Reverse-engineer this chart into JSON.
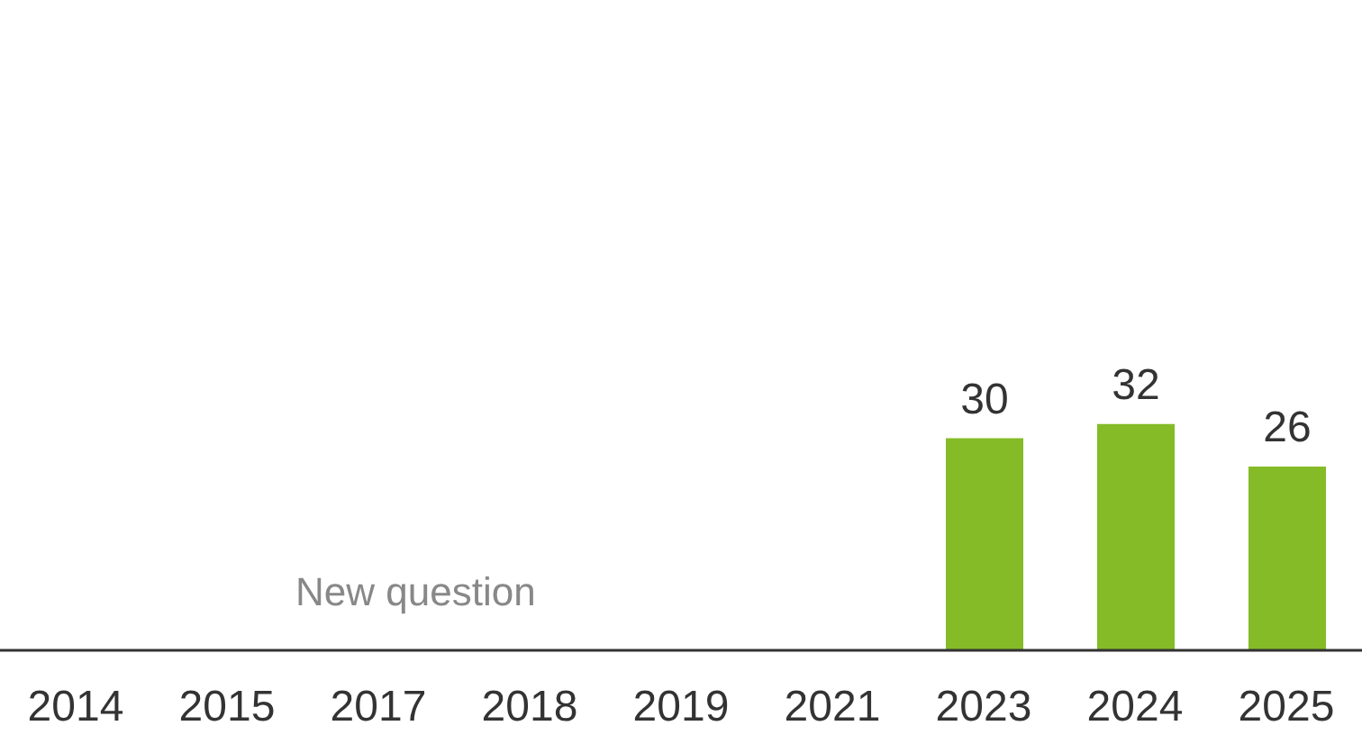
{
  "chart_data": {
    "type": "bar",
    "categories": [
      "2014",
      "2015",
      "2017",
      "2018",
      "2019",
      "2021",
      "2023",
      "2024",
      "2025"
    ],
    "values": [
      null,
      null,
      null,
      null,
      null,
      null,
      30,
      32,
      26
    ],
    "color": "#84bb27",
    "data_labels": true,
    "ylim": [
      0,
      92
    ],
    "tick_labels": "x",
    "annotations": [
      "New question"
    ]
  }
}
